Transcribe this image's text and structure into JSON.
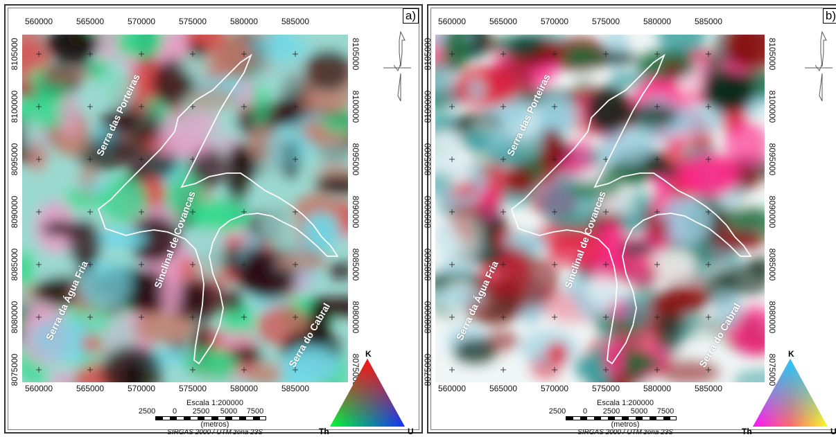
{
  "panels": [
    {
      "letter": "a)",
      "x_ticks": [
        "560000",
        "565000",
        "570000",
        "575000",
        "580000",
        "585000"
      ],
      "y_ticks": [
        "8105000",
        "8100000",
        "8095000",
        "8090000",
        "8085000",
        "8080000",
        "8075000"
      ],
      "labels": {
        "porteiras": "Serra das Porteiras",
        "covancas": "Sinclinal de Covancas",
        "agua_fria": "Serra da Água Fria",
        "cabral": "Serra do Cabral"
      },
      "ternary": {
        "top": "K",
        "left": "Th",
        "right": "U"
      }
    },
    {
      "letter": "b)",
      "x_ticks": [
        "560000",
        "565000",
        "570000",
        "575000",
        "580000",
        "585000"
      ],
      "y_ticks": [
        "8105000",
        "8100000",
        "8095000",
        "8090000",
        "8085000",
        "8080000",
        "8075000"
      ],
      "labels": {
        "porteiras": "Serra das Porteiras",
        "covancas": "Sinclinal de Covancas",
        "agua_fria": "Serra da Água Fria",
        "cabral": "Serra do Cabral"
      },
      "ternary": {
        "top": "K",
        "left": "Th",
        "right": "U"
      }
    }
  ],
  "scale": {
    "title": "Escala 1:200000",
    "ticks": [
      "2500",
      "0",
      "2500",
      "5000",
      "7500"
    ],
    "unit": "(metros)",
    "crs": "SIRGAS 2000 / UTM zona 23S"
  },
  "colors": {
    "K": "#ff1a1a",
    "Th": "#00ff33",
    "U": "#1a33ff",
    "a_palette": [
      "#2b0d12",
      "#d94a4a",
      "#9bd9d0",
      "#e8a0c8",
      "#2fd98a",
      "#6fd7e6",
      "#1a0a08",
      "#c08070"
    ],
    "b_palette": [
      "#e01c3c",
      "#1a6b3a",
      "#f0f6f6",
      "#9ad0e0",
      "#0a2a1a",
      "#ff2a8a",
      "#8a1010",
      "#3aa0a0"
    ]
  }
}
